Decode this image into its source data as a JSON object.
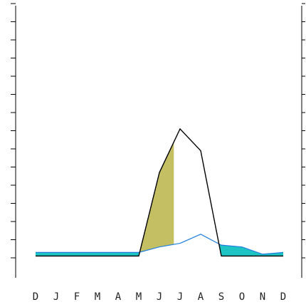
{
  "chart_data": {
    "type": "area",
    "title": "",
    "xlabel": "",
    "ylabel": "",
    "categories": [
      "D",
      "J",
      "F",
      "M",
      "A",
      "M",
      "J",
      "J",
      "A",
      "S",
      "O",
      "N",
      "D"
    ],
    "ylim": [
      0,
      14
    ],
    "yticks": [
      0,
      1,
      2,
      3,
      4,
      5,
      6,
      7,
      8,
      9,
      10,
      11,
      12,
      13,
      14
    ],
    "grid": false,
    "legend": "none",
    "series": [
      {
        "key": "black",
        "values": [
          0.1,
          0.1,
          0.1,
          0.1,
          0.1,
          0.1,
          4.7,
          7.1,
          5.9,
          0.1,
          0.1,
          0.1,
          0.1
        ],
        "color": "#000000"
      },
      {
        "key": "blue",
        "values": [
          0.3,
          0.3,
          0.3,
          0.3,
          0.3,
          0.3,
          0.6,
          0.8,
          1.3,
          0.7,
          0.6,
          0.2,
          0.3
        ],
        "color": "#1f7fe0"
      }
    ],
    "fills": [
      {
        "kind": "black_above_blue",
        "x_from": 5,
        "x_to": 6.7,
        "color": "#c4bf63"
      },
      {
        "kind": "blue_above_black",
        "color": "#1ec4c4"
      }
    ]
  }
}
